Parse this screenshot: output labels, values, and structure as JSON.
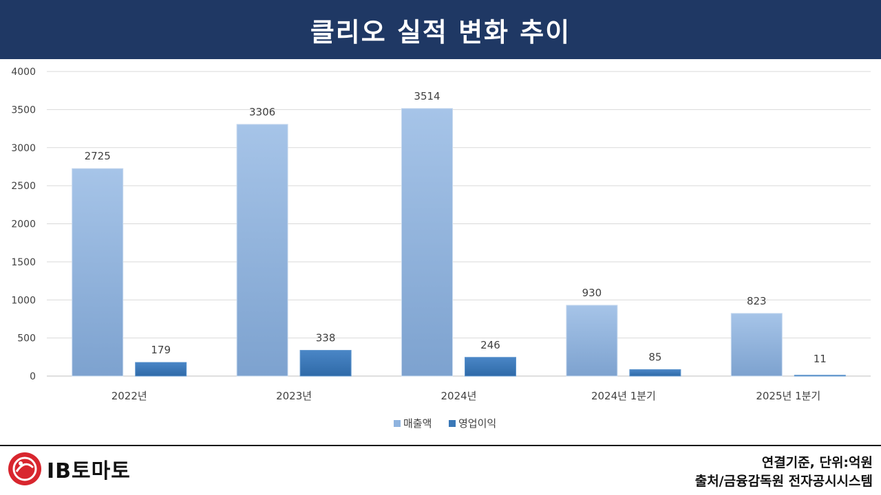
{
  "header": {
    "title": "클리오 실적 변화 추이"
  },
  "chart_data": {
    "type": "bar",
    "categories": [
      "2022년",
      "2023년",
      "2024년",
      "2024년 1분기",
      "2025년 1분기"
    ],
    "series": [
      {
        "name": "매출액",
        "values": [
          2725,
          3306,
          3514,
          930,
          823
        ],
        "color": "#8fb4df"
      },
      {
        "name": "영업이익",
        "values": [
          179,
          338,
          246,
          85,
          11
        ],
        "color": "#3a78b8"
      }
    ],
    "ylim": [
      0,
      4000
    ],
    "yticks": [
      0,
      500,
      1000,
      1500,
      2000,
      2500,
      3000,
      3500,
      4000
    ],
    "grid": true,
    "legend": "bottom"
  },
  "footer": {
    "logo_text": "IB토마토",
    "note_basis": "연결기준, 단위:억원",
    "note_source": "출처/금융감독원 전자공시시스템"
  }
}
